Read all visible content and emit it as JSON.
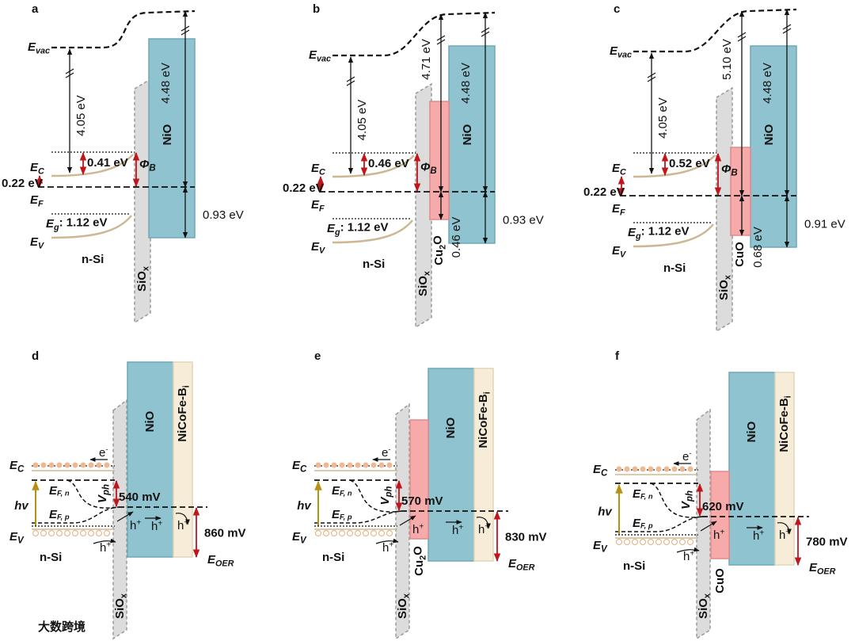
{
  "panels_top": [
    {
      "letter": "a",
      "e_vac": {
        "text": "E",
        "sub": "vac"
      },
      "vac_gap": "4.05 eV",
      "nio_gap": "4.48 eV",
      "nio": "NiO",
      "bend": "0.41 eV",
      "phi": {
        "text": "Φ",
        "sub": "B"
      },
      "e_c": {
        "text": "E",
        "sub": "C"
      },
      "offset": "0.22 eV",
      "e_f": {
        "text": "E",
        "sub": "F"
      },
      "e_g": {
        "text": "E",
        "sub": "g",
        "after": ": 1.12 eV"
      },
      "e_v": {
        "text": "E",
        "sub": "V"
      },
      "si": "n-Si",
      "siox": {
        "text": "SiO",
        "sub": "x"
      },
      "vb_offset": "0.93 eV"
    },
    {
      "letter": "b",
      "e_vac": {
        "text": "E",
        "sub": "vac"
      },
      "vac_gap": "4.05 eV",
      "ox_gap": "4.71 eV",
      "nio_gap": "4.48 eV",
      "nio": "NiO",
      "bend": "0.46 eV",
      "phi": {
        "text": "Φ",
        "sub": "B"
      },
      "e_c": {
        "text": "E",
        "sub": "C"
      },
      "offset": "0.22 eV",
      "e_f": {
        "text": "E",
        "sub": "F"
      },
      "e_g": {
        "text": "E",
        "sub": "g",
        "after": ": 1.12 eV"
      },
      "e_v": {
        "text": "E",
        "sub": "V"
      },
      "si": "n-Si",
      "siox": {
        "text": "SiO",
        "sub": "x"
      },
      "ox": {
        "text": "Cu",
        "sub": "2",
        "after": "O"
      },
      "ox_vb": "0.46 eV",
      "vb_offset": "0.93 eV"
    },
    {
      "letter": "c",
      "e_vac": {
        "text": "E",
        "sub": "vac"
      },
      "vac_gap": "4.05 eV",
      "ox_gap": "5.10 eV",
      "nio_gap": "4.48 eV",
      "nio": "NiO",
      "bend": "0.52 eV",
      "phi": {
        "text": "Φ",
        "sub": "B"
      },
      "e_c": {
        "text": "E",
        "sub": "C"
      },
      "offset": "0.22 eV",
      "e_f": {
        "text": "E",
        "sub": "F"
      },
      "e_g": {
        "text": "E",
        "sub": "g",
        "after": ": 1.12 eV"
      },
      "e_v": {
        "text": "E",
        "sub": "V"
      },
      "si": "n-Si",
      "siox": {
        "text": "SiO",
        "sub": "x"
      },
      "ox": "CuO",
      "ox_vb": "0.68 eV",
      "vb_offset": "0.91 eV"
    }
  ],
  "panels_bottom": [
    {
      "letter": "d",
      "e_c": {
        "text": "E",
        "sub": "C"
      },
      "electron": {
        "text": "e",
        "sup": "-"
      },
      "nio": "NiO",
      "catalyst": {
        "text": "NiCoFe-B",
        "sub": "i"
      },
      "hv": "hv",
      "e_fn": {
        "text": "E",
        "sub": "F, n"
      },
      "v_ph": {
        "text": "V",
        "sub": "ph"
      },
      "v_ph_value": "540 mV",
      "e_fp": {
        "text": "E",
        "sub": "F, p"
      },
      "holes": [
        {
          "text": "h",
          "sup": "+"
        },
        {
          "text": "h",
          "sup": "+"
        },
        {
          "text": "h",
          "sup": "+"
        },
        {
          "text": "h",
          "sup": "+"
        }
      ],
      "e_oer_value": "860 mV",
      "e_oer": {
        "text": "E",
        "sub": "OER"
      },
      "e_v": {
        "text": "E",
        "sub": "V"
      },
      "si": "n-Si",
      "siox": {
        "text": "SiO",
        "sub": "x"
      }
    },
    {
      "letter": "e",
      "e_c": {
        "text": "E",
        "sub": "C"
      },
      "electron": {
        "text": "e",
        "sup": "-"
      },
      "nio": "NiO",
      "catalyst": {
        "text": "NiCoFe-B",
        "sub": "i"
      },
      "hv": "hv",
      "e_fn": {
        "text": "E",
        "sub": "F, n"
      },
      "v_ph": {
        "text": "V",
        "sub": "ph"
      },
      "v_ph_value": "570 mV",
      "e_fp": {
        "text": "E",
        "sub": "F, p"
      },
      "holes": [
        {
          "text": "h",
          "sup": "+"
        },
        {
          "text": "h",
          "sup": "+"
        },
        {
          "text": "h",
          "sup": "+"
        },
        {
          "text": "h",
          "sup": "+"
        }
      ],
      "e_oer_value": "830 mV",
      "e_oer": {
        "text": "E",
        "sub": "OER"
      },
      "e_v": {
        "text": "E",
        "sub": "V"
      },
      "si": "n-Si",
      "siox": {
        "text": "SiO",
        "sub": "x"
      },
      "ox": {
        "text": "Cu",
        "sub": "2",
        "after": "O"
      }
    },
    {
      "letter": "f",
      "e_c": {
        "text": "E",
        "sub": "C"
      },
      "electron": {
        "text": "e",
        "sup": "-"
      },
      "nio": "NiO",
      "catalyst": {
        "text": "NiCoFe-B",
        "sub": "i"
      },
      "hv": "hv",
      "e_fn": {
        "text": "E",
        "sub": "F, n"
      },
      "v_ph": {
        "text": "V",
        "sub": "ph"
      },
      "v_ph_value": "620 mV",
      "e_fp": {
        "text": "E",
        "sub": "F, p"
      },
      "holes": [
        {
          "text": "h",
          "sup": "+"
        },
        {
          "text": "h",
          "sup": "+"
        },
        {
          "text": "h",
          "sup": "+"
        },
        {
          "text": "h",
          "sup": "+"
        }
      ],
      "e_oer_value": "780 mV",
      "e_oer": {
        "text": "E",
        "sub": "OER"
      },
      "e_v": {
        "text": "E",
        "sub": "V"
      },
      "si": "n-Si",
      "siox": {
        "text": "SiO",
        "sub": "x"
      },
      "ox": "CuO"
    }
  ],
  "watermark": "大数跨境"
}
